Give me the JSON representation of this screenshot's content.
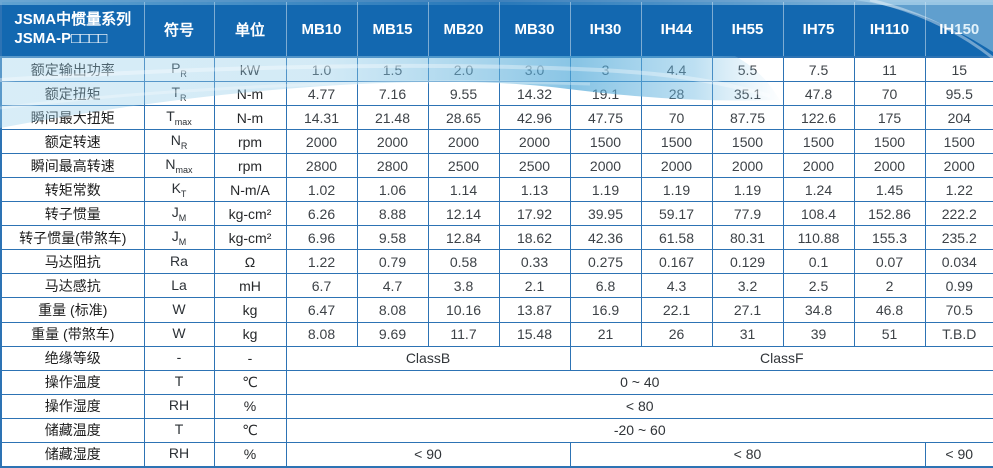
{
  "colors": {
    "header_bg": "#1368b0",
    "header_text": "#ffffff",
    "grid": "#2d73b4",
    "label_text": "#1d1d1d",
    "value_text": "#3d4247",
    "wave_light": "#9fd2ec",
    "wave_deep": "#4fa8d8"
  },
  "table": {
    "header": {
      "series_line1": "JSMA中惯量系列",
      "series_line2": "JSMA-P□□□□",
      "symbol_label": "符号",
      "unit_label": "单位",
      "models": [
        "MB10",
        "MB15",
        "MB20",
        "MB30",
        "IH30",
        "IH44",
        "IH55",
        "IH75",
        "IH110",
        "IH150"
      ]
    },
    "rows": [
      {
        "label": "额定输出功率",
        "symbol": {
          "base": "P",
          "sub": "R"
        },
        "unit": "kW",
        "values": [
          "1.0",
          "1.5",
          "2.0",
          "3.0",
          "3",
          "4.4",
          "5.5",
          "7.5",
          "11",
          "15"
        ]
      },
      {
        "label": "额定扭矩",
        "symbol": {
          "base": "T",
          "sub": "R"
        },
        "unit": "N-m",
        "values": [
          "4.77",
          "7.16",
          "9.55",
          "14.32",
          "19.1",
          "28",
          "35.1",
          "47.8",
          "70",
          "95.5"
        ]
      },
      {
        "label": "瞬间最大扭矩",
        "symbol": {
          "base": "T",
          "sub": "max"
        },
        "unit": "N-m",
        "values": [
          "14.31",
          "21.48",
          "28.65",
          "42.96",
          "47.75",
          "70",
          "87.75",
          "122.6",
          "175",
          "204"
        ]
      },
      {
        "label": "额定转速",
        "symbol": {
          "base": "N",
          "sub": "R"
        },
        "unit": "rpm",
        "values": [
          "2000",
          "2000",
          "2000",
          "2000",
          "1500",
          "1500",
          "1500",
          "1500",
          "1500",
          "1500"
        ]
      },
      {
        "label": "瞬间最高转速",
        "symbol": {
          "base": "N",
          "sub": "max"
        },
        "unit": "rpm",
        "values": [
          "2800",
          "2800",
          "2500",
          "2500",
          "2000",
          "2000",
          "2000",
          "2000",
          "2000",
          "2000"
        ]
      },
      {
        "label": "转矩常数",
        "symbol": {
          "base": "K",
          "sub": "T"
        },
        "unit": "N-m/A",
        "values": [
          "1.02",
          "1.06",
          "1.14",
          "1.13",
          "1.19",
          "1.19",
          "1.19",
          "1.24",
          "1.45",
          "1.22"
        ]
      },
      {
        "label": "转子惯量",
        "symbol": {
          "base": "J",
          "sub": "M"
        },
        "unit": "kg-cm²",
        "values": [
          "6.26",
          "8.88",
          "12.14",
          "17.92",
          "39.95",
          "59.17",
          "77.9",
          "108.4",
          "152.86",
          "222.2"
        ]
      },
      {
        "label": "转子惯量(带煞车)",
        "symbol": {
          "base": "J",
          "sub": "M"
        },
        "unit": "kg-cm²",
        "values": [
          "6.96",
          "9.58",
          "12.84",
          "18.62",
          "42.36",
          "61.58",
          "80.31",
          "110.88",
          "155.3",
          "235.2"
        ]
      },
      {
        "label": "马达阻抗",
        "symbol": {
          "base": "Ra",
          "sub": ""
        },
        "unit": "Ω",
        "values": [
          "1.22",
          "0.79",
          "0.58",
          "0.33",
          "0.275",
          "0.167",
          "0.129",
          "0.1",
          "0.07",
          "0.034"
        ]
      },
      {
        "label": "马达感抗",
        "symbol": {
          "base": "La",
          "sub": ""
        },
        "unit": "mH",
        "values": [
          "6.7",
          "4.7",
          "3.8",
          "2.1",
          "6.8",
          "4.3",
          "3.2",
          "2.5",
          "2",
          "0.99"
        ]
      },
      {
        "label": "重量 (标准)",
        "symbol": {
          "base": "W",
          "sub": ""
        },
        "unit": "kg",
        "values": [
          "6.47",
          "8.08",
          "10.16",
          "13.87",
          "16.9",
          "22.1",
          "27.1",
          "34.8",
          "46.8",
          "70.5"
        ]
      },
      {
        "label": "重量 (带煞车)",
        "symbol": {
          "base": "W",
          "sub": ""
        },
        "unit": "kg",
        "values": [
          "8.08",
          "9.69",
          "11.7",
          "15.48",
          "21",
          "26",
          "31",
          "39",
          "51",
          "T.B.D"
        ]
      },
      {
        "label": "绝缘等级",
        "symbol": {
          "base": "-",
          "sub": ""
        },
        "unit": "-",
        "merged": [
          {
            "text": "ClassB",
            "span": 4
          },
          {
            "text": "ClassF",
            "span": 6
          }
        ]
      },
      {
        "label": "操作温度",
        "symbol": {
          "base": "T",
          "sub": ""
        },
        "unit": "℃",
        "merged": [
          {
            "text": "0 ~ 40",
            "span": 10
          }
        ]
      },
      {
        "label": "操作湿度",
        "symbol": {
          "base": "RH",
          "sub": ""
        },
        "unit": "%",
        "merged": [
          {
            "text": "< 80",
            "span": 10
          }
        ]
      },
      {
        "label": "储藏温度",
        "symbol": {
          "base": "T",
          "sub": ""
        },
        "unit": "℃",
        "merged": [
          {
            "text": "-20 ~ 60",
            "span": 10
          }
        ]
      },
      {
        "label": "储藏湿度",
        "symbol": {
          "base": "RH",
          "sub": ""
        },
        "unit": "%",
        "merged": [
          {
            "text": "< 90",
            "span": 4
          },
          {
            "text": "< 80",
            "span": 5
          },
          {
            "text": "< 90",
            "span": 1
          }
        ]
      }
    ]
  }
}
